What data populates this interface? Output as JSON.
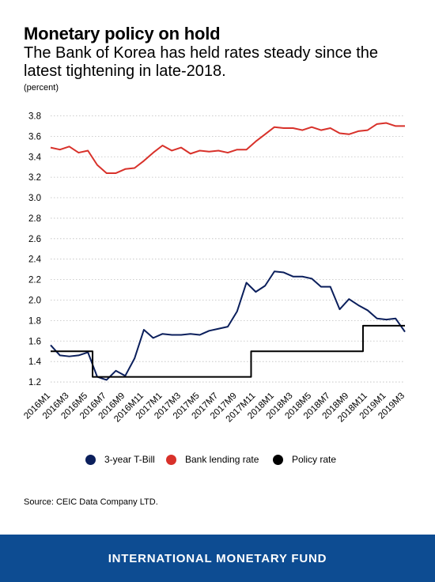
{
  "header": {
    "title": "Monetary policy on hold",
    "subtitle": "The Bank of Korea has held rates steady since the latest tightening in late-2018.",
    "unit": "(percent)"
  },
  "source": "Source: CEIC Data Company LTD.",
  "footer": {
    "org": "INTERNATIONAL MONETARY FUND"
  },
  "chart_data": {
    "type": "line",
    "x": [
      "2016M1",
      "2016M2",
      "2016M3",
      "2016M4",
      "2016M5",
      "2016M6",
      "2016M7",
      "2016M8",
      "2016M9",
      "2016M10",
      "2016M11",
      "2016M12",
      "2017M1",
      "2017M2",
      "2017M3",
      "2017M4",
      "2017M5",
      "2017M6",
      "2017M7",
      "2017M8",
      "2017M9",
      "2017M10",
      "2017M11",
      "2017M12",
      "2018M1",
      "2018M2",
      "2018M3",
      "2018M4",
      "2018M5",
      "2018M6",
      "2018M7",
      "2018M8",
      "2018M9",
      "2018M10",
      "2018M11",
      "2018M12",
      "2019M1",
      "2019M2",
      "2019M3"
    ],
    "x_tick_labels": [
      "2016M1",
      "2016M3",
      "2016M5",
      "2016M7",
      "2016M9",
      "2016M11",
      "2017M1",
      "2017M3",
      "2017M5",
      "2017M7",
      "2017M9",
      "2017M11",
      "2018M1",
      "2018M3",
      "2018M5",
      "2018M7",
      "2018M9",
      "2018M11",
      "2019M1",
      "2019M3"
    ],
    "ylim": [
      1.1,
      3.85
    ],
    "y_ticks": [
      "1.2",
      "1.4",
      "1.6",
      "1.8",
      "2.0",
      "2.2",
      "2.4",
      "2.6",
      "2.8",
      "3.0",
      "3.2",
      "3.4",
      "3.6",
      "3.8"
    ],
    "grid": "horizontal dotted",
    "legend_position": "bottom",
    "series": [
      {
        "name": "3-year T-Bill",
        "color": "#0b1f5c",
        "values": [
          1.56,
          1.46,
          1.45,
          1.46,
          1.49,
          1.25,
          1.22,
          1.31,
          1.26,
          1.43,
          1.71,
          1.63,
          1.67,
          1.66,
          1.66,
          1.67,
          1.66,
          1.7,
          1.72,
          1.74,
          1.89,
          2.17,
          2.08,
          2.14,
          2.28,
          2.27,
          2.23,
          2.23,
          2.21,
          2.13,
          2.13,
          1.91,
          2.01,
          1.95,
          1.9,
          1.82,
          1.81,
          1.82,
          1.69
        ]
      },
      {
        "name": "Bank lending rate",
        "color": "#d8312a",
        "values": [
          3.49,
          3.47,
          3.5,
          3.44,
          3.46,
          3.32,
          3.24,
          3.24,
          3.28,
          3.29,
          3.36,
          3.44,
          3.51,
          3.46,
          3.49,
          3.43,
          3.46,
          3.45,
          3.46,
          3.44,
          3.47,
          3.47,
          3.55,
          3.62,
          3.69,
          3.68,
          3.68,
          3.66,
          3.69,
          3.66,
          3.68,
          3.63,
          3.62,
          3.65,
          3.66,
          3.72,
          3.73,
          3.7,
          3.7
        ]
      },
      {
        "name": "Policy rate",
        "color": "#000000",
        "values": [
          1.5,
          1.5,
          1.5,
          1.5,
          1.5,
          1.25,
          1.25,
          1.25,
          1.25,
          1.25,
          1.25,
          1.25,
          1.25,
          1.25,
          1.25,
          1.25,
          1.25,
          1.25,
          1.25,
          1.25,
          1.25,
          1.25,
          1.5,
          1.5,
          1.5,
          1.5,
          1.5,
          1.5,
          1.5,
          1.5,
          1.5,
          1.5,
          1.5,
          1.5,
          1.75,
          1.75,
          1.75,
          1.75,
          1.75
        ]
      }
    ]
  }
}
